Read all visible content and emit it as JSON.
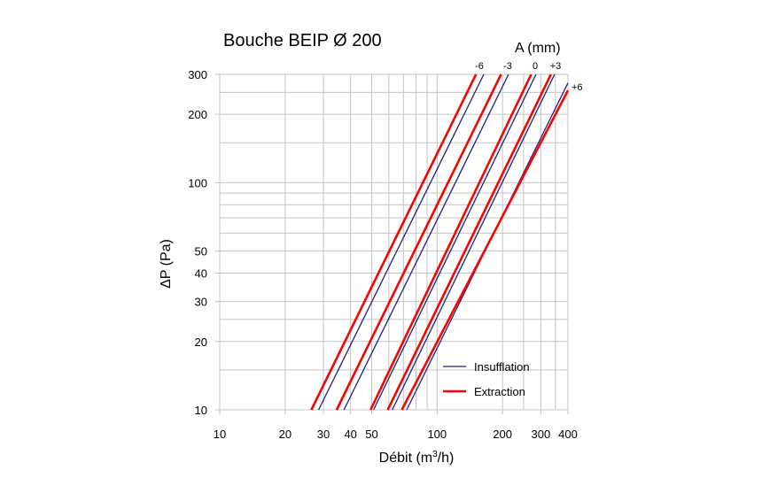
{
  "chart_data": {
    "type": "line",
    "title": "Bouche BEIP Ø 200",
    "xlabel": "Débit (m",
    "xlabel_sup": "3",
    "xlabel_end": "/h)",
    "ylabel": "ΔP (Pa)",
    "x_scale": "log",
    "y_scale": "log",
    "xlim": [
      10,
      400
    ],
    "ylim": [
      10,
      300
    ],
    "grid": true,
    "x_ticks": [
      {
        "value": 10,
        "label": "10"
      },
      {
        "value": 20,
        "label": "20"
      },
      {
        "value": 30,
        "label": "30"
      },
      {
        "value": 40,
        "label": "40"
      },
      {
        "value": 50,
        "label": "50"
      },
      {
        "value": 100,
        "label": "100"
      },
      {
        "value": 200,
        "label": "200"
      },
      {
        "value": 300,
        "label": "300"
      },
      {
        "value": 400,
        "label": "400"
      }
    ],
    "y_ticks": [
      {
        "value": 10,
        "label": "10"
      },
      {
        "value": 20,
        "label": "20"
      },
      {
        "value": 30,
        "label": "30"
      },
      {
        "value": 40,
        "label": "40"
      },
      {
        "value": 50,
        "label": "50"
      },
      {
        "value": 100,
        "label": "100"
      },
      {
        "value": 200,
        "label": "200"
      },
      {
        "value": 300,
        "label": "300"
      }
    ],
    "x_minor_grid": [
      60,
      70,
      80,
      90,
      250,
      350
    ],
    "y_minor_grid": [
      15,
      25,
      60,
      70,
      80,
      90,
      150,
      250
    ],
    "curve_parameter_label": "A (mm)",
    "curve_labels": [
      "-6",
      "-3",
      "0",
      "+3",
      "+6"
    ],
    "legend_position": "bottom-right",
    "series": [
      {
        "name": "Insufflation",
        "color": "#1a237e",
        "kind": "insufflation",
        "curves": [
          {
            "setting": "-6",
            "x": [
              28.5,
              164
            ],
            "y": [
              10,
              300
            ]
          },
          {
            "setting": "-3",
            "x": [
              37.3,
              213
            ],
            "y": [
              10,
              300
            ]
          },
          {
            "setting": "0",
            "x": [
              51,
              285
            ],
            "y": [
              10,
              300
            ]
          },
          {
            "setting": "+3",
            "x": [
              62.2,
              347
            ],
            "y": [
              10,
              300
            ]
          },
          {
            "setting": "+6",
            "x": [
              72.5,
              400
            ],
            "y": [
              10,
              275
            ]
          }
        ]
      },
      {
        "name": "Extraction",
        "color": "#ff0000",
        "kind": "extraction",
        "curves": [
          {
            "setting": "-6",
            "x": [
              26.4,
              151
            ],
            "y": [
              10,
              300
            ]
          },
          {
            "setting": "-3",
            "x": [
              34.5,
              197
            ],
            "y": [
              10,
              300
            ]
          },
          {
            "setting": "0",
            "x": [
              49.4,
              271
            ],
            "y": [
              10,
              300
            ]
          },
          {
            "setting": "+3",
            "x": [
              59.3,
              334
            ],
            "y": [
              10,
              300
            ]
          },
          {
            "setting": "+6",
            "x": [
              68.8,
              400
            ],
            "y": [
              10,
              255
            ]
          }
        ]
      }
    ]
  }
}
